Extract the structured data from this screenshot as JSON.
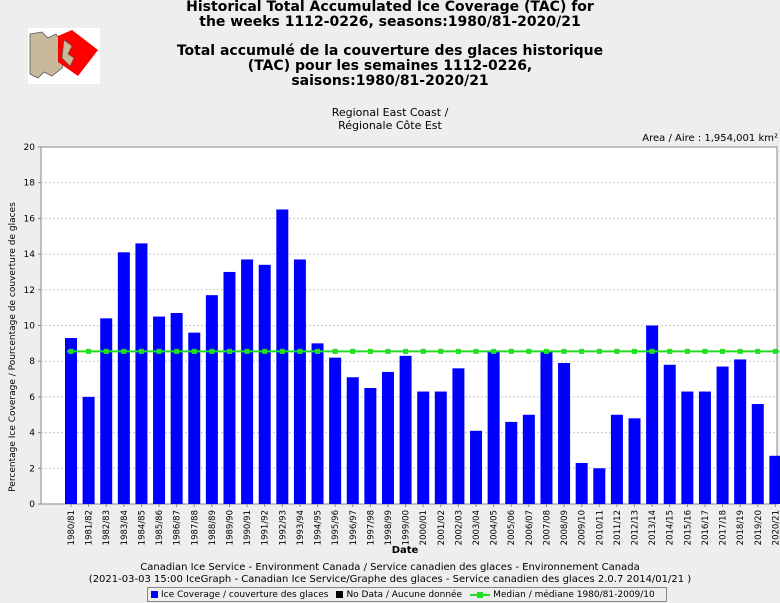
{
  "header": {
    "title_en_line1": "Historical Total Accumulated Ice Coverage (TAC) for",
    "title_en_line2": "the weeks 1112-0226, seasons:1980/81-2020/21",
    "title_fr_line1": "Total accumulé de la couverture des glaces historique",
    "title_fr_line2": "(TAC) pour les semaines 1112-0226,",
    "title_fr_line3": "saisons:1980/81-2020/21",
    "region_en": "Regional East Coast /",
    "region_fr": "Régionale Côte Est",
    "area": "Area / Aire : 1,954,001 km²"
  },
  "footer": {
    "line1": "Canadian Ice Service - Environment Canada / Service canadien des glaces - Environnement Canada",
    "line2": "(2021-03-03 15:00 IceGraph - Canadian Ice Service/Graphe des glaces - Service canadien des glaces 2.0.7 2014/01/21 )"
  },
  "legend": {
    "ice": "Ice Coverage / couverture des glaces",
    "nodata": "No Data / Aucune donnée",
    "median": "Median / médiane 1980/81-2009/10"
  },
  "colors": {
    "bar": "#0000ff",
    "median": "#22dd22",
    "nodata": "#000000"
  },
  "chart_data": {
    "type": "bar",
    "xlabel": "Date",
    "ylabel": "Percentage Ice Coverage / Pourcentage de couverture de glaces",
    "ylim": [
      0,
      20
    ],
    "yticks": [
      0,
      2,
      4,
      6,
      8,
      10,
      12,
      14,
      16,
      18,
      20
    ],
    "grid": true,
    "categories": [
      "1980/81",
      "1981/82",
      "1982/83",
      "1983/84",
      "1984/85",
      "1985/86",
      "1986/87",
      "1987/88",
      "1988/89",
      "1989/90",
      "1990/91",
      "1991/92",
      "1992/93",
      "1993/94",
      "1994/95",
      "1995/96",
      "1996/97",
      "1997/98",
      "1998/99",
      "1999/00",
      "2000/01",
      "2001/02",
      "2002/03",
      "2003/04",
      "2004/05",
      "2005/06",
      "2006/07",
      "2007/08",
      "2008/09",
      "2009/10",
      "2010/11",
      "2011/12",
      "2012/13",
      "2013/14",
      "2014/15",
      "2015/16",
      "2016/17",
      "2017/18",
      "2018/19",
      "2019/20",
      "2020/21"
    ],
    "series": [
      {
        "name": "Ice Coverage / couverture des glaces",
        "values": [
          9.3,
          6.0,
          10.4,
          14.1,
          14.6,
          10.5,
          10.7,
          9.6,
          11.7,
          13.0,
          13.7,
          13.4,
          16.5,
          13.7,
          9.0,
          8.2,
          7.1,
          6.5,
          7.4,
          8.3,
          6.3,
          6.3,
          7.6,
          4.1,
          8.6,
          4.6,
          5.0,
          8.6,
          7.9,
          2.3,
          2.0,
          5.0,
          4.8,
          10.0,
          7.8,
          6.3,
          6.3,
          7.7,
          8.1,
          5.6,
          2.7
        ]
      },
      {
        "name": "Median / médiane 1980/81-2009/10",
        "type": "line",
        "value": 8.55
      }
    ]
  }
}
